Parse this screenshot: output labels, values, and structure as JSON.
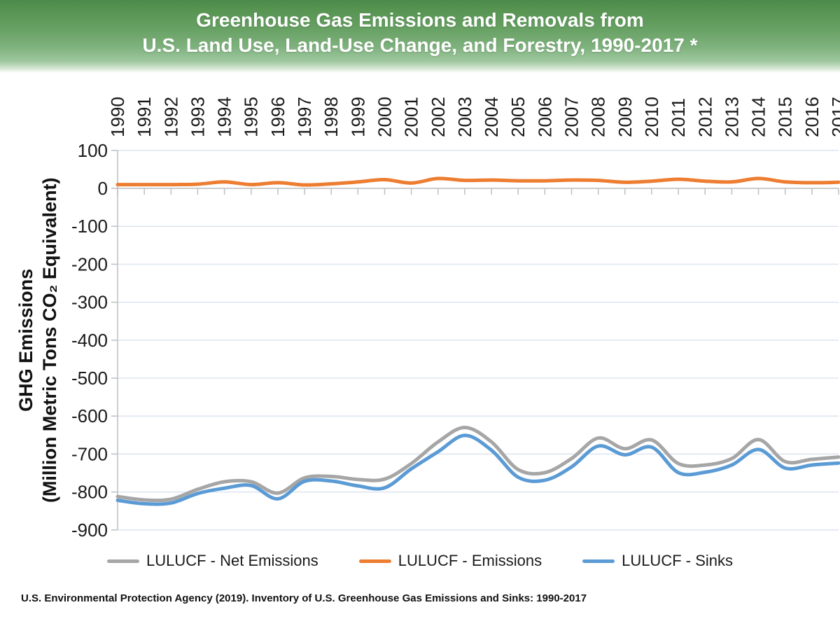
{
  "banner": {
    "title_line1": "Greenhouse Gas Emissions and Removals from",
    "title_line2": "U.S. Land Use, Land-Use Change, and Forestry, 1990-2017 *"
  },
  "footer": {
    "source": "U.S. Environmental Protection Agency (2019). Inventory of U.S. Greenhouse Gas Emissions and Sinks: 1990-2017"
  },
  "chart_data": {
    "type": "line",
    "smoothed": true,
    "title": "Greenhouse Gas Emissions and Removals from U.S. Land Use, Land-Use Change, and Forestry, 1990-2017 *",
    "ylabel_line1": "GHG Emissions",
    "ylabel_line2": "(Million Metric Tons CO₂ Equivalent)",
    "x": [
      1990,
      1991,
      1992,
      1993,
      1994,
      1995,
      1996,
      1997,
      1998,
      1999,
      2000,
      2001,
      2002,
      2003,
      2004,
      2005,
      2006,
      2007,
      2008,
      2009,
      2010,
      2011,
      2012,
      2013,
      2014,
      2015,
      2016,
      2017
    ],
    "series": [
      {
        "name": "LULUCF - Net Emissions",
        "color": "#a6a6a6",
        "values": [
          -812,
          -821,
          -819,
          -793,
          -773,
          -773,
          -803,
          -763,
          -759,
          -767,
          -766,
          -725,
          -668,
          -630,
          -668,
          -741,
          -749,
          -712,
          -658,
          -686,
          -663,
          -725,
          -729,
          -712,
          -662,
          -720,
          -714,
          -708
        ]
      },
      {
        "name": "LULUCF - Emissions",
        "color": "#ed7d31",
        "values": [
          10,
          10,
          10,
          11,
          17,
          10,
          15,
          9,
          12,
          17,
          23,
          14,
          26,
          21,
          22,
          20,
          20,
          22,
          21,
          16,
          19,
          24,
          19,
          17,
          26,
          17,
          15,
          16
        ]
      },
      {
        "name": "LULUCF - Sinks",
        "color": "#5b9bd5",
        "values": [
          -822,
          -831,
          -829,
          -804,
          -790,
          -783,
          -818,
          -772,
          -771,
          -784,
          -789,
          -739,
          -694,
          -651,
          -690,
          -761,
          -769,
          -734,
          -679,
          -702,
          -682,
          -749,
          -748,
          -729,
          -688,
          -737,
          -729,
          -724
        ]
      }
    ],
    "ylim": [
      -900,
      100
    ],
    "ytick_interval": 100,
    "grid": true,
    "legend_position": "bottom"
  },
  "colors": {
    "gridline": "#dbe5f1",
    "axis": "#bfbfbf",
    "tick_label": "#1a1a1a",
    "banner_text": "#ffffff"
  }
}
